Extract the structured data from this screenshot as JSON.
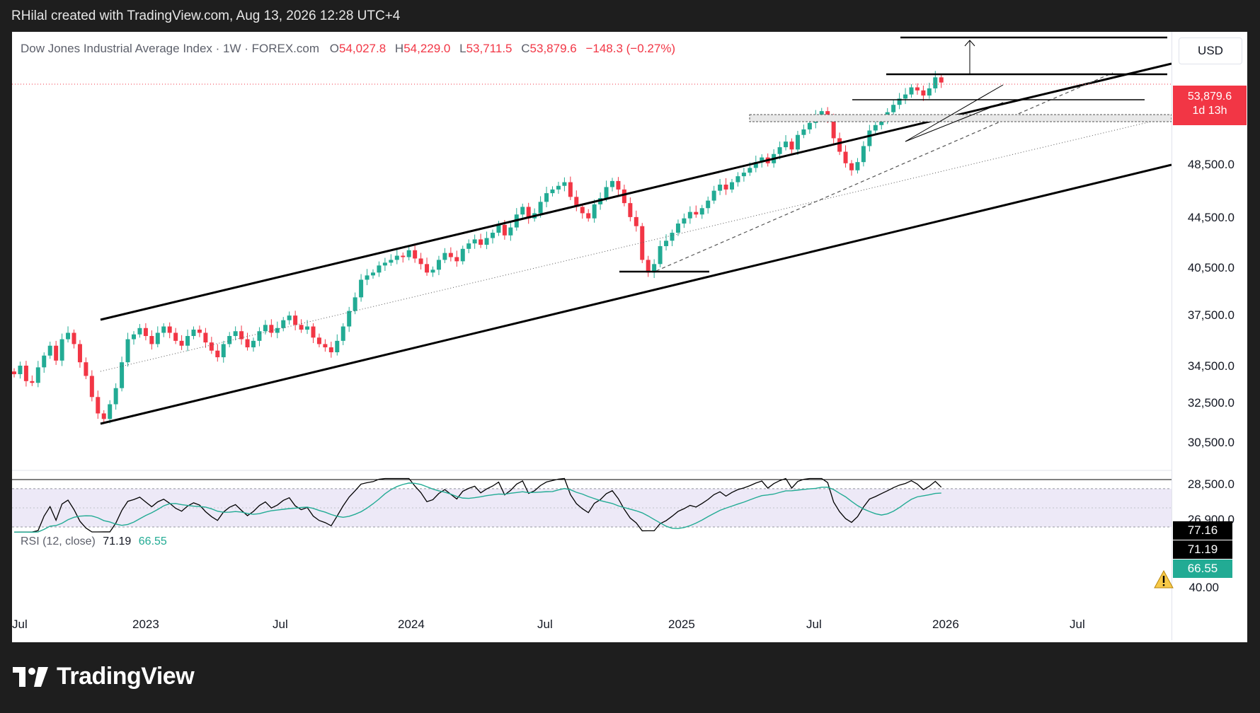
{
  "caption": "RHilal created with TradingView.com, Aug 13, 2026 12:28 UTC+4",
  "legend": {
    "symbol": "Dow Jones Industrial Average Index · 1W · FOREX.com",
    "o_key": "O",
    "o": "54,027.8",
    "h_key": "H",
    "h": "54,229.0",
    "l_key": "L",
    "l": "53,711.5",
    "c_key": "C",
    "c": "53,879.6",
    "change": "−148.3 (−0.27%)"
  },
  "rsi_legend": {
    "label": "RSI (12, close)",
    "value1": "71.19",
    "value2": "66.55"
  },
  "currency": "USD",
  "price_axis": [
    "48,500.0",
    "44,500.0",
    "40,500.0",
    "37,500.0",
    "34,500.0",
    "32,500.0",
    "30,500.0",
    "28,500.0",
    "26,900.0"
  ],
  "last_price": {
    "value": "53,879.6",
    "countdown": "1d 13h"
  },
  "rsi_tags": {
    "upper": "77.16",
    "current": "71.19",
    "signal": "66.55",
    "lower": "40.00"
  },
  "time_axis": [
    "Jul",
    "2023",
    "Jul",
    "2024",
    "Jul",
    "2025",
    "Jul",
    "2026",
    "Jul"
  ],
  "brand": "TradingView",
  "colors": {
    "up": "#22ab94",
    "down": "#f23645",
    "rsi": "#000000",
    "rsi_ma": "#22ab94",
    "rsi_band": "#ede9f7"
  },
  "icons": {
    "warning": "warning-icon",
    "logo": "tradingview-logo-icon"
  },
  "chart_data": {
    "type": "candlestick",
    "symbol": "Dow Jones Industrial Average Index",
    "interval": "1W",
    "y_axis_ticks": [
      48500,
      44500,
      40500,
      37500,
      34500,
      32500,
      30500,
      28500,
      26900
    ],
    "log_scale": true,
    "last": {
      "open": 54027.8,
      "high": 54229.0,
      "low": 53711.5,
      "close": 53879.6
    },
    "weekly_closes_approx": [
      31400,
      31900,
      31000,
      30900,
      31800,
      32500,
      33100,
      32200,
      33500,
      33900,
      33200,
      32100,
      31300,
      30100,
      29200,
      28900,
      29700,
      30600,
      32100,
      33500,
      33800,
      34200,
      33700,
      33200,
      33900,
      34300,
      33900,
      33400,
      33100,
      33700,
      34100,
      33900,
      33300,
      32800,
      32400,
      33200,
      33700,
      34000,
      33500,
      33000,
      33400,
      34000,
      34400,
      33900,
      34200,
      34700,
      35000,
      34400,
      34100,
      34300,
      33600,
      33200,
      33000,
      32700,
      33400,
      34300,
      35300,
      36200,
      37400,
      37700,
      37900,
      38400,
      38600,
      38800,
      39100,
      39000,
      39500,
      38900,
      38500,
      37900,
      38100,
      38800,
      39300,
      39000,
      38700,
      39600,
      40000,
      40300,
      39900,
      40400,
      40800,
      41400,
      40600,
      41200,
      42200,
      42800,
      41900,
      42300,
      43200,
      43900,
      44200,
      44500,
      44800,
      43600,
      42800,
      42300,
      41900,
      43000,
      43500,
      44400,
      44900,
      44200,
      43100,
      42000,
      41300,
      38800,
      37900,
      38500,
      39800,
      40200,
      40800,
      41500,
      41900,
      42400,
      42200,
      42700,
      43300,
      44100,
      44600,
      44200,
      44800,
      45300,
      45600,
      46000,
      46500,
      46900,
      46400,
      47200,
      47800,
      48300,
      47600,
      48900,
      49400,
      50000,
      50600,
      51100,
      50400,
      48600,
      47400,
      46400,
      45800,
      46500,
      47900,
      49300,
      49800,
      50400,
      51000,
      51700,
      52300,
      52700,
      53400,
      53100,
      52600,
      53300,
      54400,
      53880
    ],
    "rsi_period": 12,
    "rsi_last": 71.19,
    "rsi_ma_last": 66.55,
    "rsi_levels": [
      77.16,
      40.0
    ]
  }
}
